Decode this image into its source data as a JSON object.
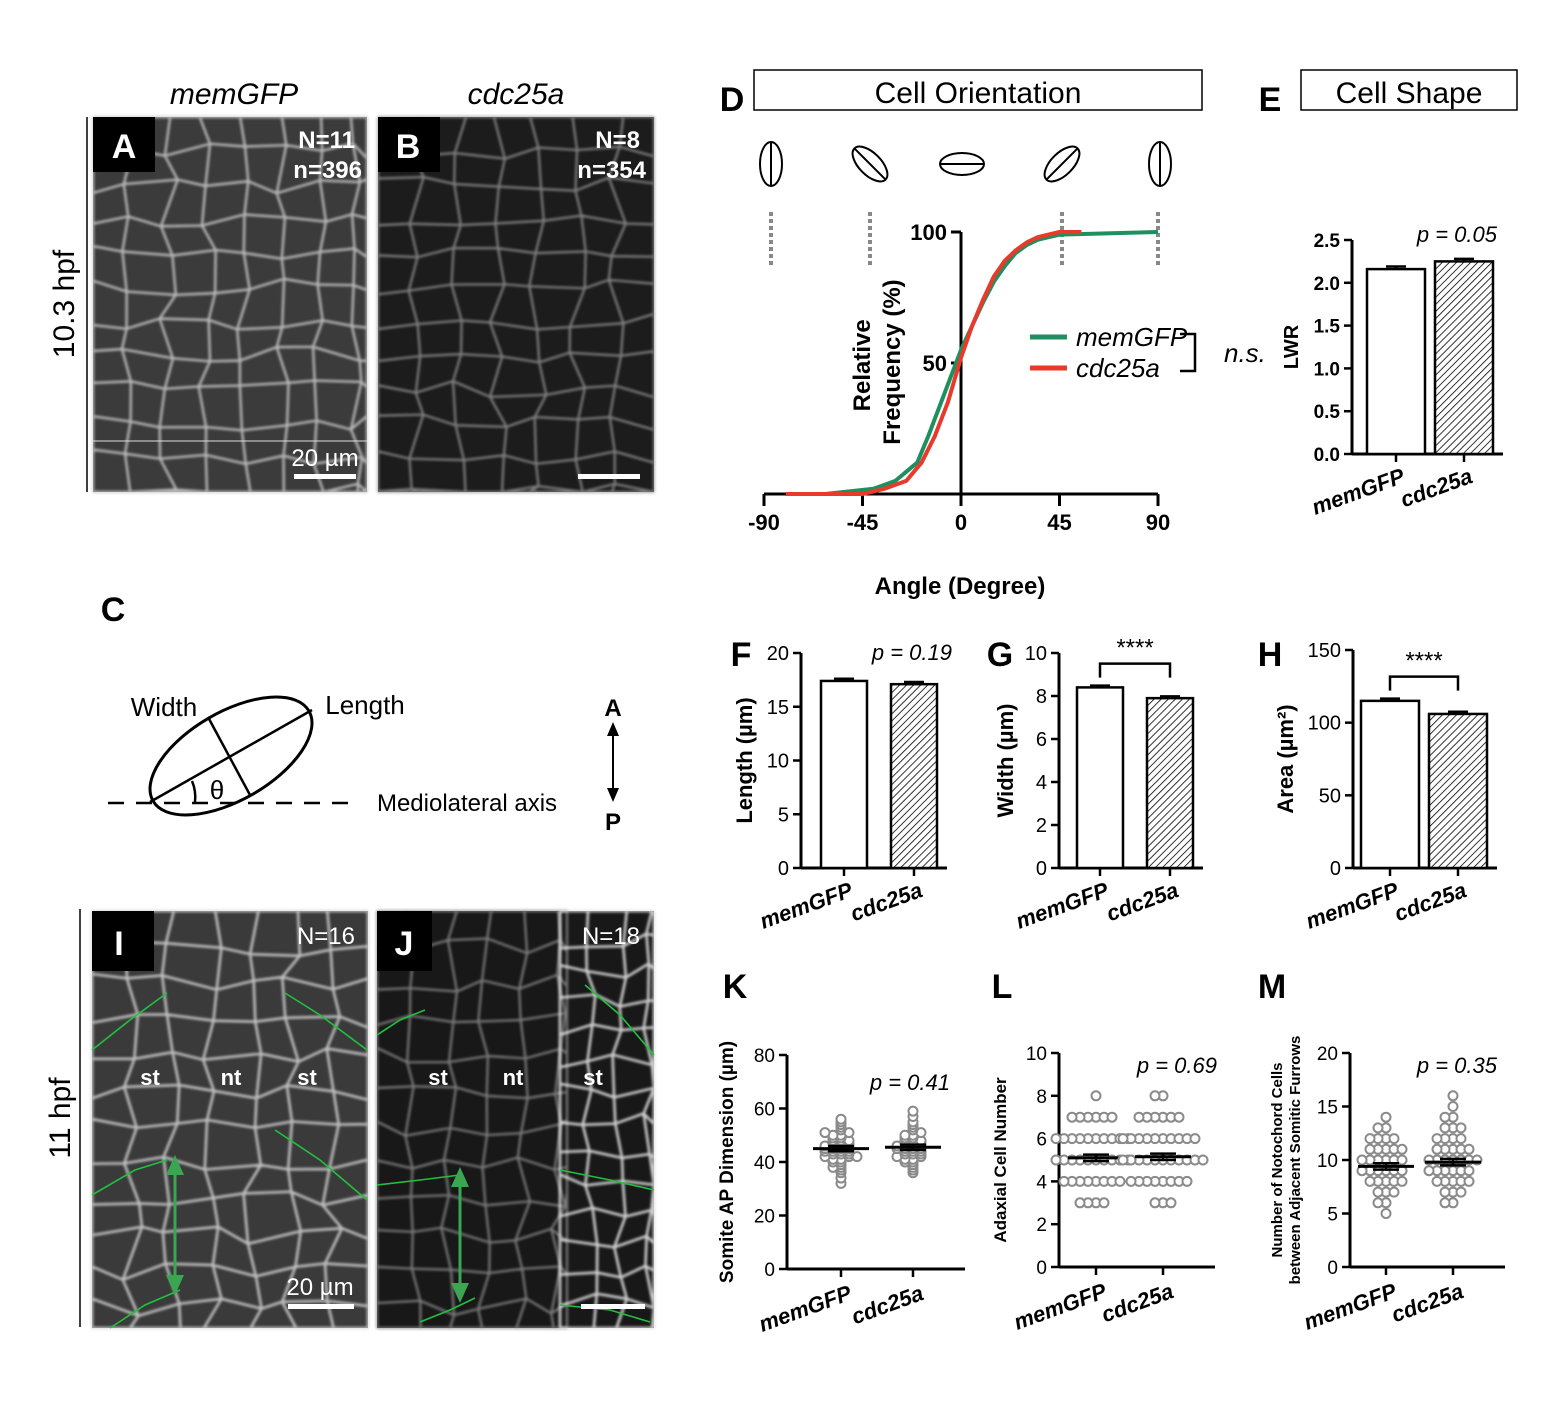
{
  "panel_labels": {
    "A": "A",
    "B": "B",
    "C": "C",
    "D": "D",
    "E": "E",
    "F": "F",
    "G": "G",
    "H": "H",
    "I": "I",
    "J": "J",
    "K": "K",
    "L": "L",
    "M": "M"
  },
  "micrographs": {
    "memGFP_header": "memGFP",
    "cdc25a_header": "cdc25a",
    "stage_top": "10.3 hpf",
    "stage_bottom": "11 hpf",
    "A_N": "N=11",
    "A_n": "n=396",
    "B_N": "N=8",
    "B_n": "n=354",
    "I_N": "N=16",
    "J_N": "N=18",
    "scale_bar": "20 µm",
    "tissue_st": "st",
    "tissue_nt": "nt"
  },
  "schematic_C": {
    "width_label": "Width",
    "length_label": "Length",
    "theta": "θ",
    "axis_label": "Mediolateral axis",
    "anterior": "A",
    "posterior": "P"
  },
  "chart_data": [
    {
      "panel": "D",
      "type": "line",
      "header": "Cell Orientation",
      "xlabel": "Angle (Degree)",
      "ylabel": "Relative Frequency (%)",
      "xlim": [
        -90,
        90
      ],
      "ylim": [
        0,
        100
      ],
      "xticks": [
        -90,
        -45,
        0,
        45,
        90
      ],
      "yticks": [
        50,
        100
      ],
      "significance": "n.s.",
      "series": [
        {
          "name": "memGFP",
          "color": "#1e9060",
          "x": [
            -62,
            -40,
            -30,
            -20,
            -15,
            -10,
            -5,
            0,
            5,
            10,
            15,
            20,
            25,
            30,
            35,
            40,
            45,
            90
          ],
          "y": [
            0,
            2,
            5,
            12,
            22,
            33,
            44,
            55,
            64,
            73,
            81,
            87,
            92,
            95,
            97,
            98,
            99,
            100
          ]
        },
        {
          "name": "cdc25a",
          "color": "#e8392a",
          "x": [
            -80,
            -45,
            -35,
            -25,
            -18,
            -12,
            -6,
            0,
            5,
            10,
            15,
            20,
            25,
            30,
            35,
            40,
            45,
            55
          ],
          "y": [
            0,
            0,
            2,
            5,
            12,
            22,
            35,
            52,
            64,
            74,
            83,
            89,
            93,
            96,
            98,
            99,
            100,
            100
          ]
        }
      ],
      "orientation_glyphs": [
        90,
        -45,
        0,
        45,
        90
      ]
    },
    {
      "panel": "E",
      "type": "bar",
      "header": "Cell Shape",
      "categories": [
        "memGFP",
        "cdc25a"
      ],
      "values": [
        2.16,
        2.25
      ],
      "errors": [
        0.03,
        0.03
      ],
      "ylabel": "LWR",
      "ylim": [
        0,
        2.5
      ],
      "yticks": [
        "0.0",
        "0.5",
        "1.0",
        "1.5",
        "2.0",
        "2.5"
      ],
      "annotation": "p = 0.05"
    },
    {
      "panel": "F",
      "type": "bar",
      "categories": [
        "memGFP",
        "cdc25a"
      ],
      "values": [
        17.4,
        17.1
      ],
      "errors": [
        0.2,
        0.2
      ],
      "ylabel": "Length (µm)",
      "ylim": [
        0,
        20
      ],
      "yticks": [
        "0",
        "5",
        "10",
        "15",
        "20"
      ],
      "annotation": "p = 0.19"
    },
    {
      "panel": "G",
      "type": "bar",
      "categories": [
        "memGFP",
        "cdc25a"
      ],
      "values": [
        8.4,
        7.9
      ],
      "errors": [
        0.08,
        0.08
      ],
      "ylabel": "Width (µm)",
      "ylim": [
        0,
        10
      ],
      "yticks": [
        "0",
        "2",
        "4",
        "6",
        "8",
        "10"
      ],
      "annotation": "****",
      "bracket": true
    },
    {
      "panel": "H",
      "type": "bar",
      "categories": [
        "memGFP",
        "cdc25a"
      ],
      "values": [
        115,
        106
      ],
      "errors": [
        1.5,
        1.5
      ],
      "ylabel": "Area (µm²)",
      "ylim": [
        0,
        150
      ],
      "yticks": [
        "0",
        "50",
        "100",
        "150"
      ],
      "annotation": "****",
      "bracket": true
    },
    {
      "panel": "K",
      "type": "scatter",
      "categories": [
        "memGFP",
        "cdc25a"
      ],
      "means": [
        45,
        45.5
      ],
      "sem": [
        1,
        1
      ],
      "ylabel": "Somite AP Dimension (µm)",
      "ylim": [
        0,
        80
      ],
      "yticks": [
        "0",
        "20",
        "40",
        "60",
        "80"
      ],
      "annotation": "p = 0.41",
      "points": [
        [
          32,
          34,
          36,
          37,
          38,
          38,
          39,
          40,
          40,
          41,
          41,
          42,
          42,
          42,
          43,
          43,
          43,
          44,
          44,
          44,
          44,
          45,
          45,
          45,
          45,
          46,
          46,
          46,
          46,
          47,
          47,
          47,
          48,
          48,
          48,
          49,
          49,
          50,
          50,
          51,
          51,
          52,
          53,
          54,
          55,
          56
        ],
        [
          36,
          37,
          38,
          39,
          40,
          40,
          41,
          41,
          42,
          42,
          43,
          43,
          43,
          44,
          44,
          44,
          45,
          45,
          45,
          45,
          46,
          46,
          46,
          46,
          47,
          47,
          47,
          48,
          48,
          48,
          49,
          49,
          50,
          50,
          51,
          52,
          53,
          54,
          55,
          57,
          59
        ]
      ]
    },
    {
      "panel": "L",
      "type": "scatter",
      "categories": [
        "memGFP",
        "cdc25a"
      ],
      "means": [
        5.1,
        5.15
      ],
      "sem": [
        0.15,
        0.15
      ],
      "ylabel": "Adaxial Cell Number",
      "ylim": [
        0,
        10
      ],
      "yticks": [
        "0",
        "2",
        "4",
        "6",
        "8",
        "10"
      ],
      "annotation": "p = 0.69",
      "points": [
        [
          3,
          3,
          3,
          3,
          4,
          4,
          4,
          4,
          4,
          4,
          4,
          4,
          5,
          5,
          5,
          5,
          5,
          5,
          5,
          5,
          5,
          5,
          6,
          6,
          6,
          6,
          6,
          6,
          6,
          6,
          6,
          6,
          7,
          7,
          7,
          7,
          7,
          7,
          8
        ],
        [
          3,
          3,
          3,
          4,
          4,
          4,
          4,
          4,
          4,
          4,
          4,
          5,
          5,
          5,
          5,
          5,
          5,
          5,
          5,
          5,
          5,
          5,
          6,
          6,
          6,
          6,
          6,
          6,
          6,
          6,
          6,
          6,
          7,
          7,
          7,
          7,
          7,
          7,
          8,
          8
        ]
      ]
    },
    {
      "panel": "M",
      "type": "scatter",
      "categories": [
        "memGFP",
        "cdc25a"
      ],
      "means": [
        9.4,
        9.8
      ],
      "sem": [
        0.3,
        0.3
      ],
      "ylabel": "Number of Notochord Cells between Adjacent Somitic Furrows",
      "ylim": [
        0,
        20
      ],
      "yticks": [
        "0",
        "5",
        "10",
        "15",
        "20"
      ],
      "annotation": "p = 0.35",
      "points": [
        [
          5,
          6,
          6,
          7,
          7,
          7,
          8,
          8,
          8,
          8,
          8,
          9,
          9,
          9,
          9,
          9,
          9,
          10,
          10,
          10,
          10,
          10,
          10,
          11,
          11,
          11,
          11,
          11,
          12,
          12,
          12,
          12,
          13,
          13,
          14
        ],
        [
          6,
          6,
          7,
          7,
          7,
          8,
          8,
          8,
          8,
          8,
          9,
          9,
          9,
          9,
          9,
          9,
          10,
          10,
          10,
          10,
          10,
          10,
          10,
          11,
          11,
          11,
          11,
          11,
          12,
          12,
          12,
          12,
          13,
          13,
          13,
          14,
          14,
          15,
          16
        ]
      ]
    }
  ]
}
